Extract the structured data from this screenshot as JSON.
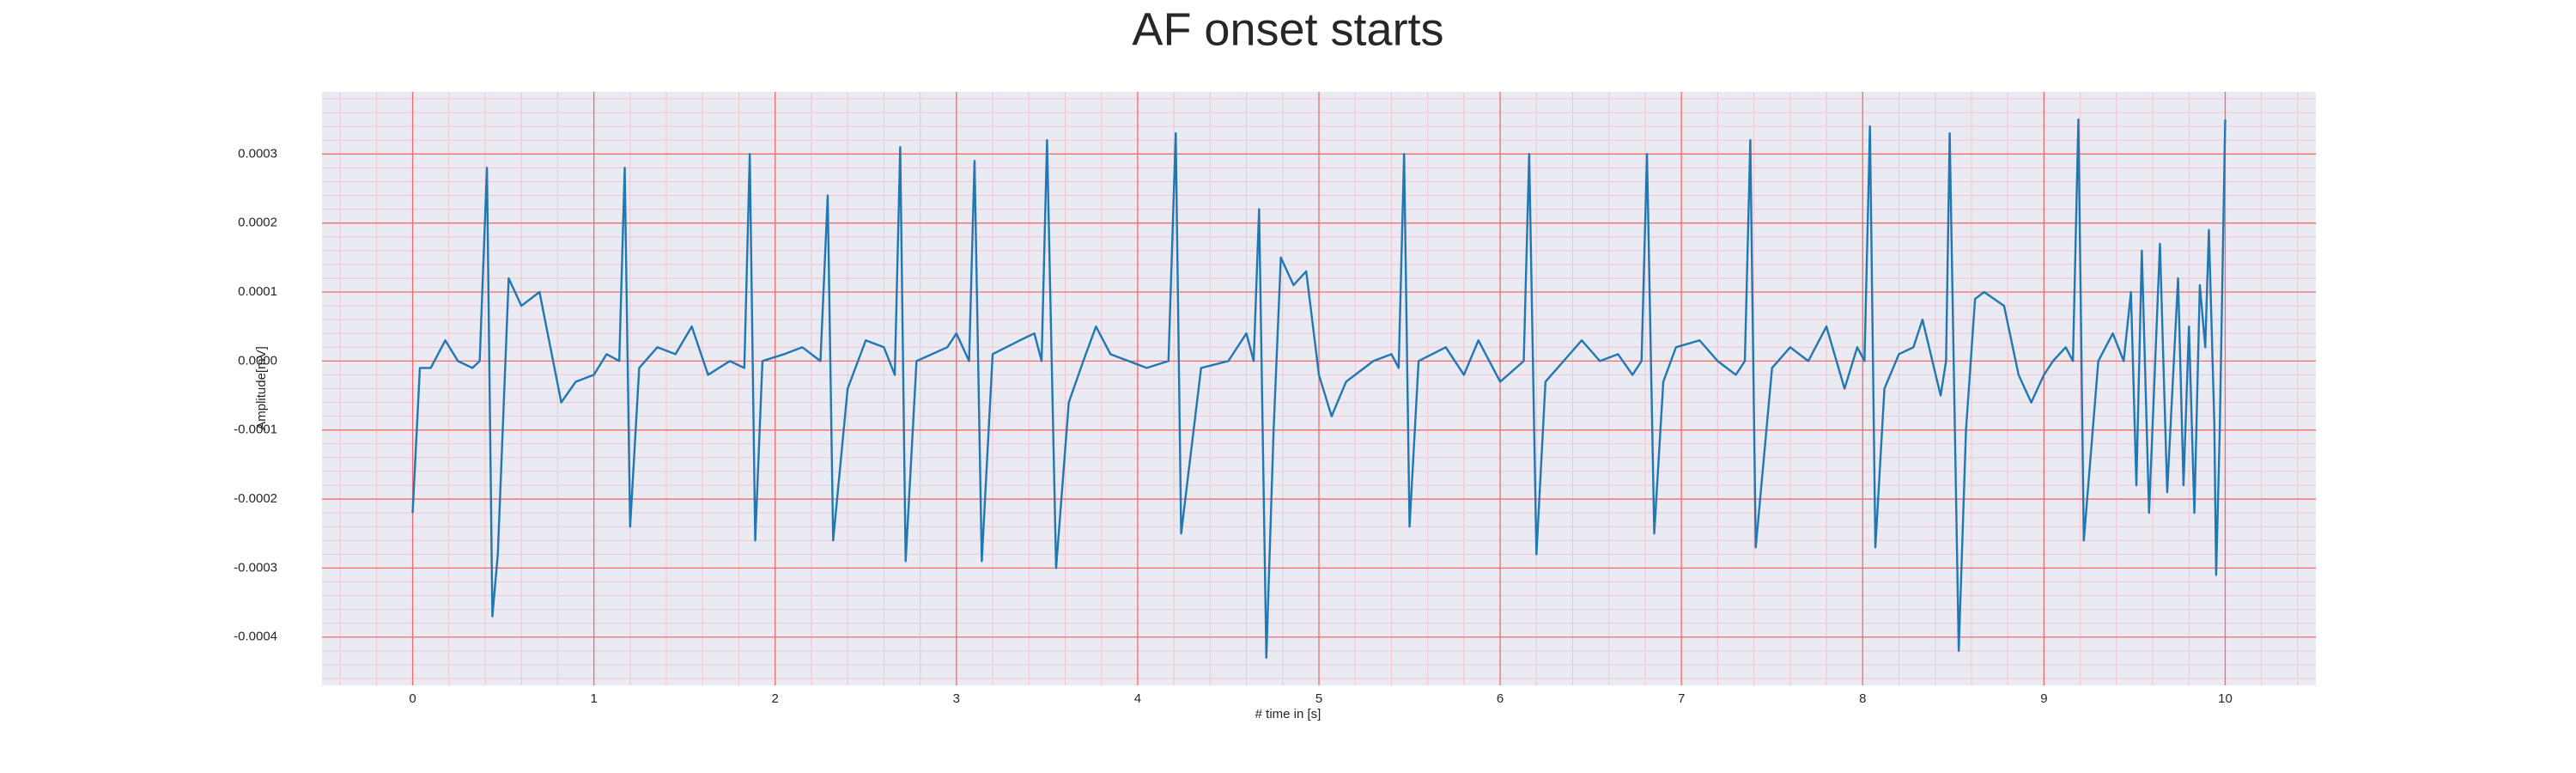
{
  "chart_data": {
    "type": "line",
    "title": "AF onset starts",
    "x_label": "# time in [s]",
    "y_label": "Amplitude[mV]",
    "color": "#1f77b4",
    "grid": true,
    "minor_grid": true,
    "grid_color": "#f26b6b",
    "minor_grid_color": "#f4c4cf",
    "background": "#eaeaf2",
    "xlim": [
      -0.5,
      10.5
    ],
    "xticks": [
      0,
      1,
      2,
      3,
      4,
      5,
      6,
      7,
      8,
      9,
      10
    ],
    "ylim": [
      -0.00047,
      0.00039
    ],
    "yticks": [
      -0.0004,
      -0.0003,
      -0.0002,
      -0.0001,
      {
        "value": 0,
        "label": "0.0000"
      },
      0.0001,
      0.0002,
      0.0003
    ],
    "x": [
      0,
      0.04,
      0.1,
      0.18,
      0.25,
      0.33,
      0.37,
      0.41,
      0.44,
      0.47,
      0.53,
      0.6,
      0.7,
      0.76,
      0.82,
      0.9,
      1.0,
      1.07,
      1.14,
      1.17,
      1.2,
      1.25,
      1.35,
      1.45,
      1.54,
      1.63,
      1.75,
      1.83,
      1.86,
      1.89,
      1.93,
      2.05,
      2.15,
      2.25,
      2.29,
      2.32,
      2.4,
      2.5,
      2.6,
      2.66,
      2.69,
      2.72,
      2.78,
      2.95,
      3.0,
      3.07,
      3.1,
      3.14,
      3.2,
      3.35,
      3.43,
      3.47,
      3.5,
      3.55,
      3.62,
      3.7,
      3.77,
      3.85,
      3.95,
      4.05,
      4.17,
      4.21,
      4.24,
      4.35,
      4.5,
      4.6,
      4.64,
      4.67,
      4.71,
      4.75,
      4.79,
      4.86,
      4.93,
      5.0,
      5.07,
      5.15,
      5.3,
      5.4,
      5.44,
      5.47,
      5.5,
      5.55,
      5.7,
      5.8,
      5.88,
      6.0,
      6.13,
      6.16,
      6.2,
      6.25,
      6.35,
      6.45,
      6.55,
      6.65,
      6.73,
      6.78,
      6.81,
      6.85,
      6.9,
      6.97,
      7.1,
      7.2,
      7.3,
      7.35,
      7.38,
      7.41,
      7.5,
      7.6,
      7.7,
      7.8,
      7.9,
      7.97,
      8.01,
      8.04,
      8.07,
      8.12,
      8.2,
      8.28,
      8.33,
      8.43,
      8.46,
      8.48,
      8.53,
      8.57,
      8.62,
      8.67,
      8.78,
      8.86,
      8.93,
      9.0,
      9.05,
      9.12,
      9.16,
      9.19,
      9.22,
      9.3,
      9.38,
      9.44,
      9.48,
      9.51,
      9.54,
      9.58,
      9.64,
      9.68,
      9.74,
      9.77,
      9.8,
      9.83,
      9.86,
      9.89,
      9.91,
      9.94,
      9.95,
      9.97,
      10.0
    ],
    "values": [
      -0.00022,
      -1e-05,
      -1e-05,
      3e-05,
      0,
      -1e-05,
      0,
      0.00028,
      -0.00037,
      -0.00028,
      0.00012,
      8e-05,
      0.0001,
      2e-05,
      -6e-05,
      -3e-05,
      -2e-05,
      1e-05,
      0,
      0.00028,
      -0.00024,
      -1e-05,
      2e-05,
      1e-05,
      5e-05,
      -2e-05,
      0,
      -1e-05,
      0.0003,
      -0.00026,
      0,
      1e-05,
      2e-05,
      0,
      0.00024,
      -0.00026,
      -4e-05,
      3e-05,
      2e-05,
      -2e-05,
      0.00031,
      -0.00029,
      0,
      2e-05,
      4e-05,
      0,
      0.00029,
      -0.00029,
      1e-05,
      3e-05,
      4e-05,
      0,
      0.00032,
      -0.0003,
      -6e-05,
      0,
      5e-05,
      1e-05,
      0,
      -1e-05,
      0,
      0.00033,
      -0.00025,
      -1e-05,
      0,
      4e-05,
      0,
      0.00022,
      -0.00043,
      -0.0001,
      0.00015,
      0.00011,
      0.00013,
      -2e-05,
      -8e-05,
      -3e-05,
      0,
      1e-05,
      -1e-05,
      0.0003,
      -0.00024,
      0,
      2e-05,
      -2e-05,
      3e-05,
      -3e-05,
      0,
      0.0003,
      -0.00028,
      -3e-05,
      0,
      3e-05,
      0,
      1e-05,
      -2e-05,
      0,
      0.0003,
      -0.00025,
      -3e-05,
      2e-05,
      3e-05,
      0,
      -2e-05,
      0,
      0.00032,
      -0.00027,
      -1e-05,
      2e-05,
      0,
      5e-05,
      -4e-05,
      2e-05,
      0,
      0.00034,
      -0.00027,
      -4e-05,
      1e-05,
      2e-05,
      6e-05,
      -5e-05,
      0,
      0.00033,
      -0.00042,
      -0.0001,
      9e-05,
      0.0001,
      8e-05,
      -2e-05,
      -6e-05,
      -2e-05,
      0,
      2e-05,
      0,
      0.00035,
      -0.00026,
      0,
      4e-05,
      0,
      0.0001,
      -0.00018,
      0.00016,
      -0.00022,
      0.00017,
      -0.00019,
      0.00012,
      -0.00018,
      5e-05,
      -0.00022,
      0.00011,
      2e-05,
      0.00019,
      -9e-05,
      -0.00031,
      -0.0001,
      0.00035
    ]
  }
}
